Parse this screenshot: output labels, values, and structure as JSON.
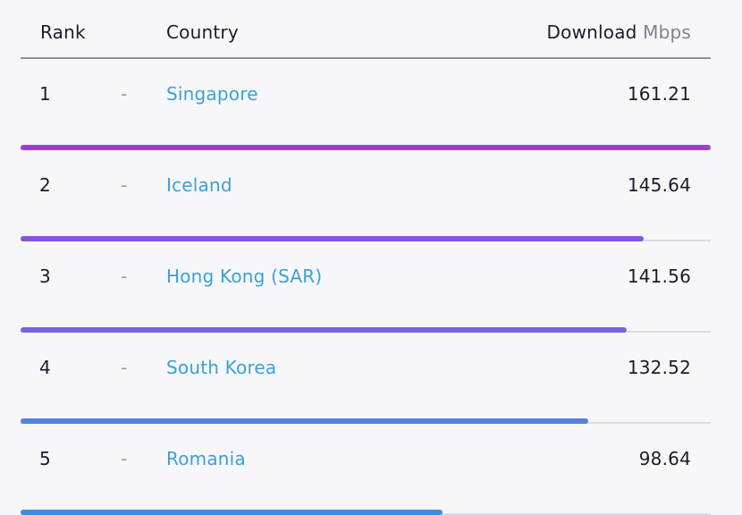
{
  "header": {
    "rank_label": "Rank",
    "country_label": "Country",
    "download_label": "Download",
    "unit_label": "Mbps"
  },
  "max_value": 161.21,
  "rows": [
    {
      "rank": "1",
      "dash": "-",
      "country": "Singapore",
      "value": "161.21",
      "num": 161.21,
      "color": "#9b3fd1"
    },
    {
      "rank": "2",
      "dash": "-",
      "country": "Iceland",
      "value": "145.64",
      "num": 145.64,
      "color": "#8b55d8"
    },
    {
      "rank": "3",
      "dash": "-",
      "country": "Hong Kong (SAR)",
      "value": "141.56",
      "num": 141.56,
      "color": "#7466dd"
    },
    {
      "rank": "4",
      "dash": "-",
      "country": "South Korea",
      "value": "132.52",
      "num": 132.52,
      "color": "#4e84df"
    },
    {
      "rank": "5",
      "dash": "-",
      "country": "Romania",
      "value": "98.64",
      "num": 98.64,
      "color": "#3b8fe0"
    }
  ]
}
